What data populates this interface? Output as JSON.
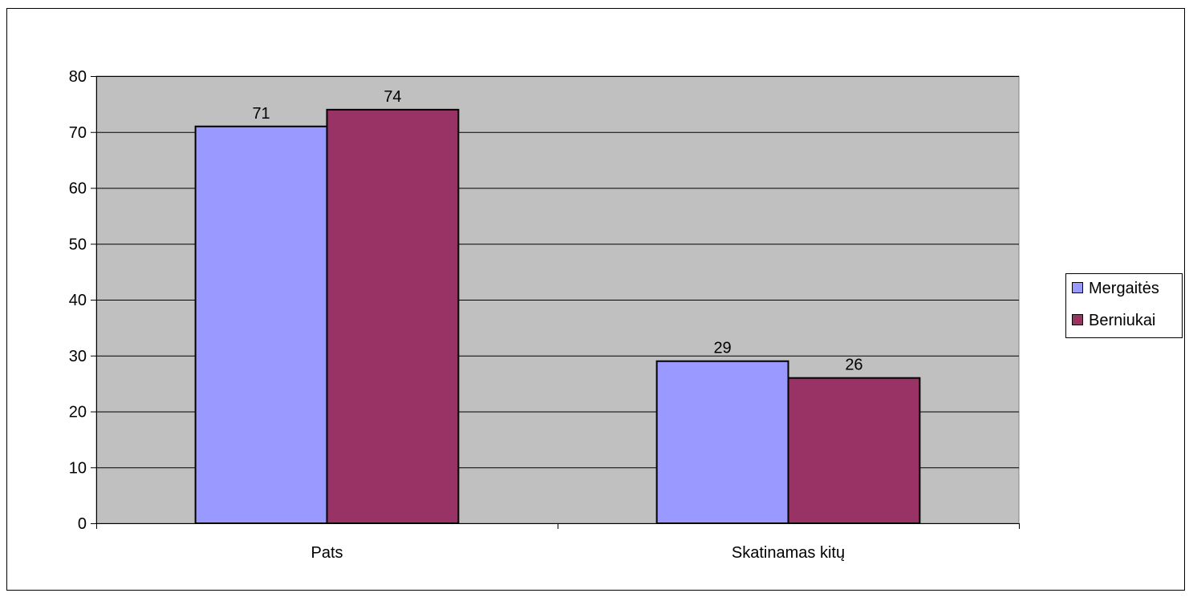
{
  "chart_data": {
    "type": "bar",
    "title": "",
    "xlabel": "",
    "ylabel": "",
    "categories": [
      "Pats",
      "Skatinamas kitų"
    ],
    "series": [
      {
        "name": "Mergaitės",
        "values": [
          71,
          29
        ],
        "color": "#9999ff"
      },
      {
        "name": "Berniukai",
        "values": [
          74,
          26
        ],
        "color": "#993366"
      }
    ],
    "ylim": [
      0,
      80
    ],
    "yticks": [
      0,
      10,
      20,
      30,
      40,
      50,
      60,
      70,
      80
    ],
    "grid": true,
    "legend": "right",
    "plot_background": "#c0c0c0",
    "data_labels": true
  }
}
